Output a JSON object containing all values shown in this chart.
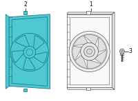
{
  "bg_color": "#ffffff",
  "fill_c": "#4ec9d4",
  "outline_c": "#1a7a8a",
  "gray_c": "#555555",
  "gray_light": "#aaaaaa",
  "label_color": "#000000",
  "label_fontsize": 5.5,
  "fig_width": 2.0,
  "fig_height": 1.47,
  "dpi": 100,
  "lw_fill": 0.6,
  "lw_out": 0.5
}
